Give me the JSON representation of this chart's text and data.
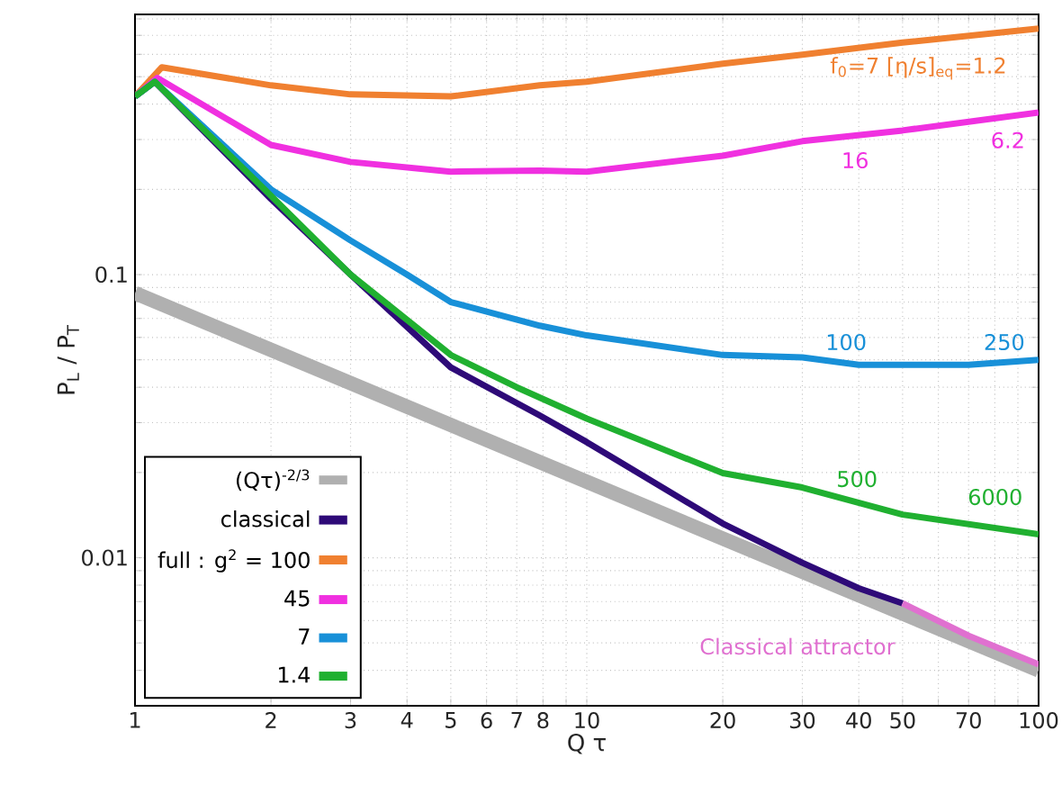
{
  "chart_data": {
    "type": "line",
    "xlabel": "Q τ",
    "ylabel": "P$_{L}$ / P$_{T}$",
    "log": "xy",
    "grid": true,
    "legend": "bottom left",
    "line_style": "solid",
    "xlim": [
      1,
      100
    ],
    "ylim": [
      0.003,
      0.83
    ],
    "xticks": [
      1,
      2,
      3,
      4,
      5,
      6,
      7,
      8,
      {
        "value": 9,
        "label": null
      },
      10,
      20,
      30,
      40,
      50,
      {
        "value": 60,
        "label": null
      },
      70,
      {
        "value": 80,
        "label": null
      },
      {
        "value": 90,
        "label": null
      },
      100
    ],
    "yticks": [
      {
        "value": 0.003,
        "label": null
      },
      {
        "value": 0.004,
        "label": null
      },
      {
        "value": 0.005,
        "label": null
      },
      {
        "value": 0.006,
        "label": null
      },
      {
        "value": 0.007,
        "label": null
      },
      {
        "value": 0.008,
        "label": null
      },
      {
        "value": 0.009,
        "label": null
      },
      0.01,
      {
        "value": 0.02,
        "label": null
      },
      {
        "value": 0.03,
        "label": null
      },
      {
        "value": 0.04,
        "label": null
      },
      {
        "value": 0.05,
        "label": null
      },
      {
        "value": 0.06,
        "label": null
      },
      {
        "value": 0.07,
        "label": null
      },
      {
        "value": 0.08,
        "label": null
      },
      {
        "value": 0.09,
        "label": null
      },
      0.1,
      {
        "value": 0.2,
        "label": null
      },
      {
        "value": 0.3,
        "label": null
      },
      {
        "value": 0.4,
        "label": null
      },
      {
        "value": 0.5,
        "label": null
      },
      {
        "value": 0.6,
        "label": null
      },
      {
        "value": 0.7,
        "label": null
      },
      {
        "value": 0.8,
        "label": null
      }
    ],
    "series": [
      {
        "name": "(Qτ)$^{-2/3}$",
        "color": "#b0b0b0",
        "x": [
          1,
          100
        ],
        "values": [
          0.086,
          0.004
        ]
      },
      {
        "name": "classical",
        "color": "#2e0a78",
        "x": [
          1,
          1.106,
          2,
          3,
          5,
          7.87,
          10,
          20,
          30,
          40,
          50
        ],
        "values": [
          0.426,
          0.48,
          0.185,
          0.1,
          0.047,
          0.0318,
          0.0256,
          0.0132,
          0.0096,
          0.0078,
          0.0069
        ]
      },
      {
        "name": "full : g$^{2}$ = 100",
        "color": "#f08030",
        "x": [
          1,
          1.147,
          2,
          3,
          5,
          7.87,
          10,
          20,
          30,
          50,
          100
        ],
        "values": [
          0.426,
          0.54,
          0.466,
          0.433,
          0.426,
          0.466,
          0.48,
          0.556,
          0.598,
          0.66,
          0.74
        ]
      },
      {
        "name": "45",
        "color": "#f030e0",
        "x": [
          1,
          1.12,
          2,
          3,
          5,
          7.87,
          10,
          20,
          30,
          50,
          100
        ],
        "values": [
          0.426,
          0.495,
          0.287,
          0.25,
          0.231,
          0.233,
          0.231,
          0.263,
          0.296,
          0.323,
          0.374
        ]
      },
      {
        "name": "7",
        "color": "#1890d8",
        "x": [
          1,
          1.106,
          2,
          3,
          4,
          5,
          7.87,
          10,
          20,
          30,
          40,
          70,
          100
        ],
        "values": [
          0.426,
          0.48,
          0.2,
          0.132,
          0.1,
          0.08,
          0.066,
          0.061,
          0.052,
          0.051,
          0.048,
          0.048,
          0.05
        ]
      },
      {
        "name": "1.4",
        "color": "#20b030",
        "x": [
          1,
          1.106,
          2,
          3,
          5,
          7,
          10,
          20,
          30,
          50,
          100
        ],
        "values": [
          0.426,
          0.48,
          0.19,
          0.1,
          0.052,
          0.04,
          0.031,
          0.0199,
          0.0177,
          0.0142,
          0.0121
        ]
      },
      {
        "color": "#e070d0",
        "x": [
          50,
          70,
          100
        ],
        "values": [
          0.0069,
          0.0053,
          0.0042
        ]
      }
    ],
    "annotations": [
      "f$_{0}$=7  [η/s]$_{eq}$=1.2",
      "16",
      "6.2",
      "100",
      "250",
      "500",
      "6000",
      "Classical attractor"
    ]
  }
}
